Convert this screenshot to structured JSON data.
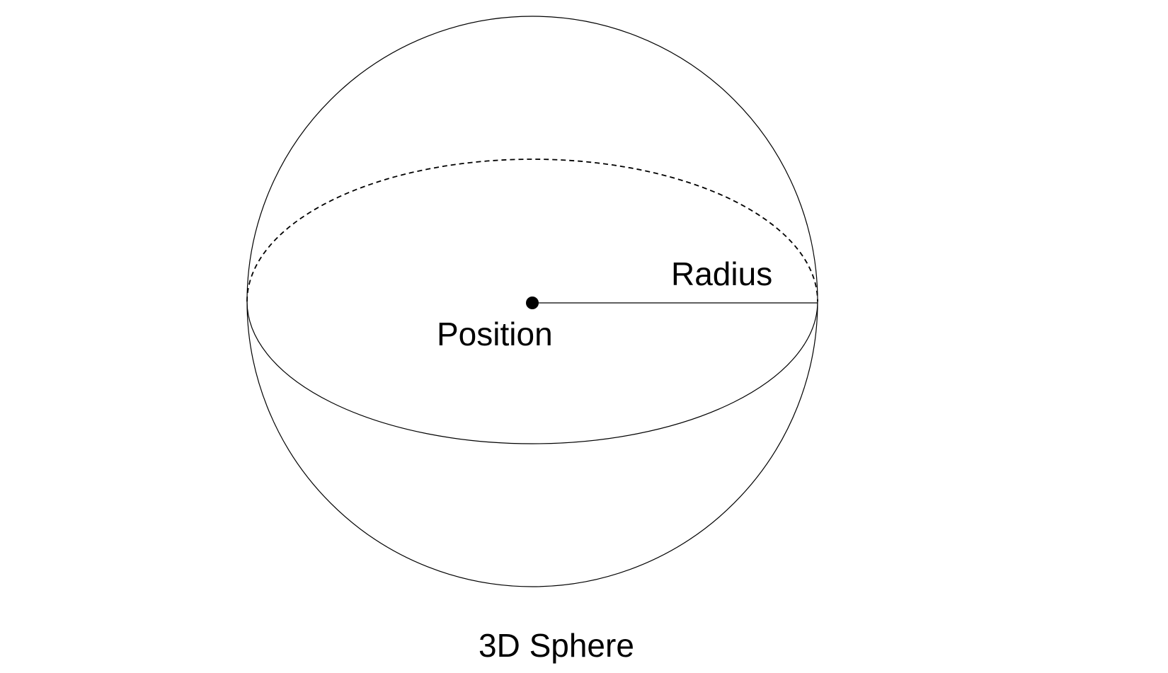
{
  "diagram": {
    "labels": {
      "radius": "Radius",
      "position": "Position",
      "caption": "3D Sphere"
    },
    "colors": {
      "stroke": "#000000",
      "background": "#ffffff"
    },
    "styles": {
      "back_equator": "dashed",
      "front_equator": "solid"
    }
  }
}
